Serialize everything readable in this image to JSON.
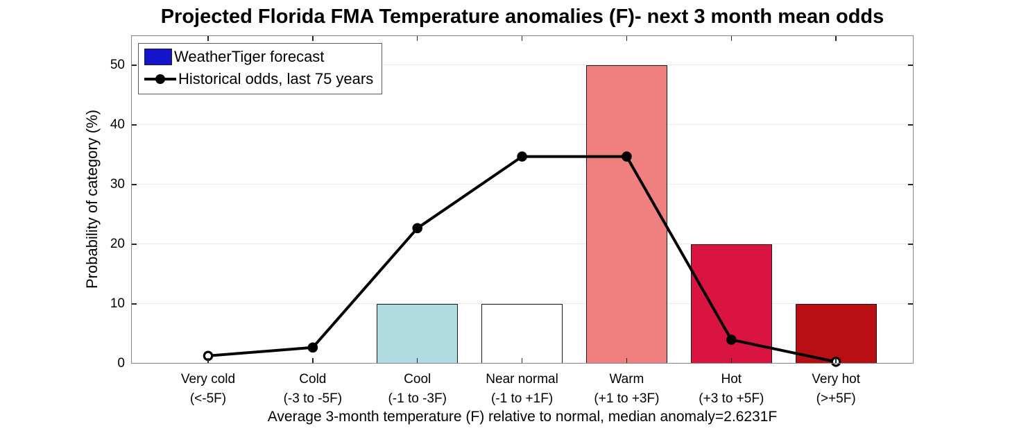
{
  "chart_data": {
    "type": "bar",
    "title": "Projected Florida FMA Temperature anomalies (F)- next 3 month mean odds",
    "xlabel": "Average 3-month temperature (F) relative to normal, median anomaly=2.6231F",
    "ylabel": "Probability of category (%)",
    "ylim": [
      0,
      55
    ],
    "yticks": [
      0,
      10,
      20,
      30,
      40,
      50
    ],
    "ytick_labels": [
      "0",
      "10",
      "20",
      "30",
      "40",
      "50"
    ],
    "grid": "horizontal",
    "legend_position": "top-left",
    "categories": [
      "Very cold",
      "Cold",
      "Cool",
      "Near normal",
      "Warm",
      "Hot",
      "Very hot"
    ],
    "category_ranges": [
      "(<-5F)",
      "(-3 to -5F)",
      "(-1 to -3F)",
      "(-1 to +1F)",
      "(+1 to +3F)",
      "(+3 to +5F)",
      "(>+5F)"
    ],
    "series": [
      {
        "name": "WeatherTiger forecast",
        "type": "bar",
        "values": [
          0,
          0,
          10,
          10,
          50,
          20,
          10
        ],
        "bar_colors": [
          "#FFFFFF",
          "#FFFFFF",
          "#AEDCE0",
          "#FFFFFF",
          "#F08080",
          "#DA1440",
          "#B90F12"
        ],
        "legend_swatch_color": "#1414CC"
      },
      {
        "name": "Historical odds, last 75 years",
        "type": "line",
        "values": [
          1.3,
          2.7,
          22.7,
          34.7,
          34.7,
          4,
          0.3
        ],
        "color": "#000000",
        "hollow_marker_indices": [
          0,
          6
        ]
      }
    ]
  }
}
